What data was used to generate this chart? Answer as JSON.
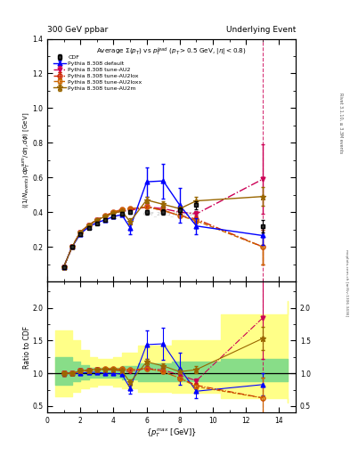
{
  "title_left": "300 GeV ppbar",
  "title_right": "Underlying Event",
  "plot_title": "Average $\\Sigma(p_T)$ vs $p_T^{lead}$ ($p_T > 0.5$ GeV, $|\\eta| < 0.8$)",
  "ylabel_main": "$\\langle(1/N_{events})\\, dp_T^{sum}/d\\eta, d\\phi\\rangle$ [GeV]",
  "ylabel_ratio": "Ratio to CDF",
  "xlabel": "$\\{p_T^{max}$ [GeV]$\\}$",
  "watermark": "CDF_2015_I1388868",
  "rivet_label": "Rivet 3.1.10, ≥ 3.3M events",
  "arxiv_label": "mcplots.cern.ch [arXiv:1306.3436]",
  "ylim_main": [
    0.0,
    1.4
  ],
  "ylim_ratio": [
    0.4,
    2.4
  ],
  "yticks_main": [
    0.2,
    0.4,
    0.6,
    0.8,
    1.0,
    1.2,
    1.4
  ],
  "yticks_ratio": [
    0.5,
    1.0,
    1.5,
    2.0
  ],
  "xlim": [
    0,
    15
  ],
  "cdf_x": [
    1.0,
    1.5,
    2.0,
    2.5,
    3.0,
    3.5,
    4.0,
    4.5,
    5.0,
    6.0,
    7.0,
    8.0,
    9.0,
    13.0
  ],
  "cdf_y": [
    0.085,
    0.2,
    0.275,
    0.31,
    0.335,
    0.355,
    0.375,
    0.39,
    0.4,
    0.4,
    0.4,
    0.41,
    0.44,
    0.32
  ],
  "cdf_yerr": [
    0.008,
    0.008,
    0.008,
    0.008,
    0.008,
    0.008,
    0.01,
    0.01,
    0.01,
    0.012,
    0.015,
    0.018,
    0.025,
    0.035
  ],
  "cdf_color": "#000000",
  "py_default_x": [
    1.0,
    1.5,
    2.0,
    2.5,
    3.0,
    3.5,
    4.0,
    4.5,
    5.0,
    6.0,
    7.0,
    8.0,
    9.0,
    13.0
  ],
  "py_default_y": [
    0.085,
    0.2,
    0.275,
    0.315,
    0.34,
    0.355,
    0.375,
    0.385,
    0.31,
    0.575,
    0.58,
    0.44,
    0.32,
    0.265
  ],
  "py_default_yerr": [
    0.003,
    0.003,
    0.003,
    0.003,
    0.003,
    0.003,
    0.003,
    0.006,
    0.035,
    0.085,
    0.1,
    0.1,
    0.045,
    0.055
  ],
  "py_default_color": "#0000ff",
  "py_au2_x": [
    1.0,
    1.5,
    2.0,
    2.5,
    3.0,
    3.5,
    4.0,
    4.5,
    5.0,
    6.0,
    7.0,
    8.0,
    9.0,
    13.0
  ],
  "py_au2_y": [
    0.085,
    0.2,
    0.285,
    0.325,
    0.355,
    0.375,
    0.395,
    0.405,
    0.41,
    0.43,
    0.42,
    0.4,
    0.39,
    0.59
  ],
  "py_au2_yerr": [
    0.003,
    0.003,
    0.003,
    0.003,
    0.003,
    0.003,
    0.003,
    0.003,
    0.003,
    0.003,
    0.003,
    0.003,
    0.015,
    0.2
  ],
  "py_au2_color": "#cc0055",
  "py_au2lox_x": [
    1.0,
    1.5,
    2.0,
    2.5,
    3.0,
    3.5,
    4.0,
    4.5,
    5.0,
    6.0,
    7.0,
    8.0,
    9.0,
    13.0
  ],
  "py_au2lox_y": [
    0.085,
    0.2,
    0.285,
    0.325,
    0.355,
    0.38,
    0.4,
    0.415,
    0.42,
    0.43,
    0.41,
    0.38,
    0.36,
    0.2
  ],
  "py_au2lox_yerr": [
    0.003,
    0.003,
    0.003,
    0.003,
    0.003,
    0.003,
    0.003,
    0.003,
    0.003,
    0.003,
    0.003,
    0.008,
    0.018,
    0.1
  ],
  "py_au2lox_color": "#cc2200",
  "py_au2loxx_x": [
    1.0,
    1.5,
    2.0,
    2.5,
    3.0,
    3.5,
    4.0,
    4.5,
    5.0,
    6.0,
    7.0,
    8.0,
    9.0,
    13.0
  ],
  "py_au2loxx_y": [
    0.085,
    0.2,
    0.285,
    0.325,
    0.355,
    0.38,
    0.4,
    0.415,
    0.42,
    0.43,
    0.41,
    0.38,
    0.35,
    0.2
  ],
  "py_au2loxx_yerr": [
    0.003,
    0.003,
    0.003,
    0.003,
    0.003,
    0.003,
    0.003,
    0.003,
    0.003,
    0.003,
    0.003,
    0.008,
    0.018,
    0.1
  ],
  "py_au2loxx_color": "#cc6600",
  "py_au2m_x": [
    1.0,
    1.5,
    2.0,
    2.5,
    3.0,
    3.5,
    4.0,
    4.5,
    5.0,
    6.0,
    7.0,
    8.0,
    9.0,
    13.0
  ],
  "py_au2m_y": [
    0.085,
    0.2,
    0.285,
    0.325,
    0.355,
    0.375,
    0.395,
    0.405,
    0.345,
    0.47,
    0.445,
    0.42,
    0.465,
    0.49
  ],
  "py_au2m_yerr": [
    0.003,
    0.003,
    0.003,
    0.003,
    0.003,
    0.003,
    0.003,
    0.008,
    0.018,
    0.018,
    0.018,
    0.018,
    0.025,
    0.055
  ],
  "py_au2m_color": "#996600",
  "band_green_bins": [
    0.5,
    1.5,
    2.0,
    2.5,
    3.0,
    3.5,
    4.0,
    4.5,
    5.5,
    7.5,
    10.5,
    14.5
  ],
  "band_green_y1": [
    0.82,
    0.88,
    0.91,
    0.93,
    0.94,
    0.94,
    0.93,
    0.91,
    0.88,
    0.88,
    0.88,
    0.88
  ],
  "band_green_y2": [
    1.25,
    1.18,
    1.12,
    1.09,
    1.08,
    1.08,
    1.09,
    1.11,
    1.15,
    1.18,
    1.22,
    1.22
  ],
  "band_yellow_bins": [
    0.5,
    1.5,
    2.0,
    2.5,
    3.0,
    3.5,
    4.0,
    4.5,
    5.5,
    7.5,
    10.5,
    14.5
  ],
  "band_yellow_y1": [
    0.65,
    0.72,
    0.77,
    0.8,
    0.82,
    0.82,
    0.8,
    0.77,
    0.72,
    0.7,
    0.62,
    0.55
  ],
  "band_yellow_y2": [
    1.65,
    1.5,
    1.35,
    1.25,
    1.22,
    1.22,
    1.25,
    1.32,
    1.42,
    1.5,
    1.9,
    2.1
  ]
}
